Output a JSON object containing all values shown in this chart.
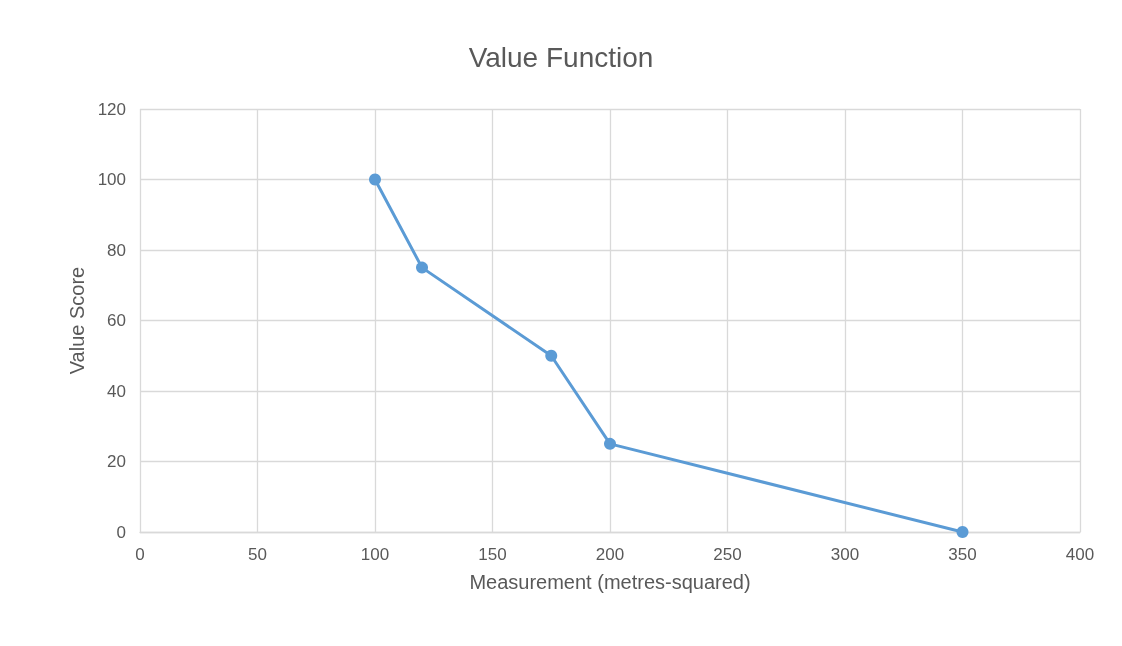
{
  "chart_data": {
    "type": "line",
    "title": "Value Function",
    "xlabel": "Measurement (metres-squared)",
    "ylabel": "Value Score",
    "x": [
      100,
      120,
      175,
      200,
      350
    ],
    "series": [
      {
        "color": "#5b9bd5",
        "values": [
          100,
          75,
          50,
          25,
          0
        ]
      }
    ],
    "xlim": [
      0,
      400
    ],
    "xticks": [
      0,
      50,
      100,
      150,
      200,
      250,
      300,
      350,
      400
    ],
    "ylim": [
      0,
      120
    ],
    "yticks": [
      0,
      20,
      40,
      60,
      80,
      100,
      120
    ],
    "grid": true,
    "marker": "circle",
    "line_style": "solid"
  }
}
